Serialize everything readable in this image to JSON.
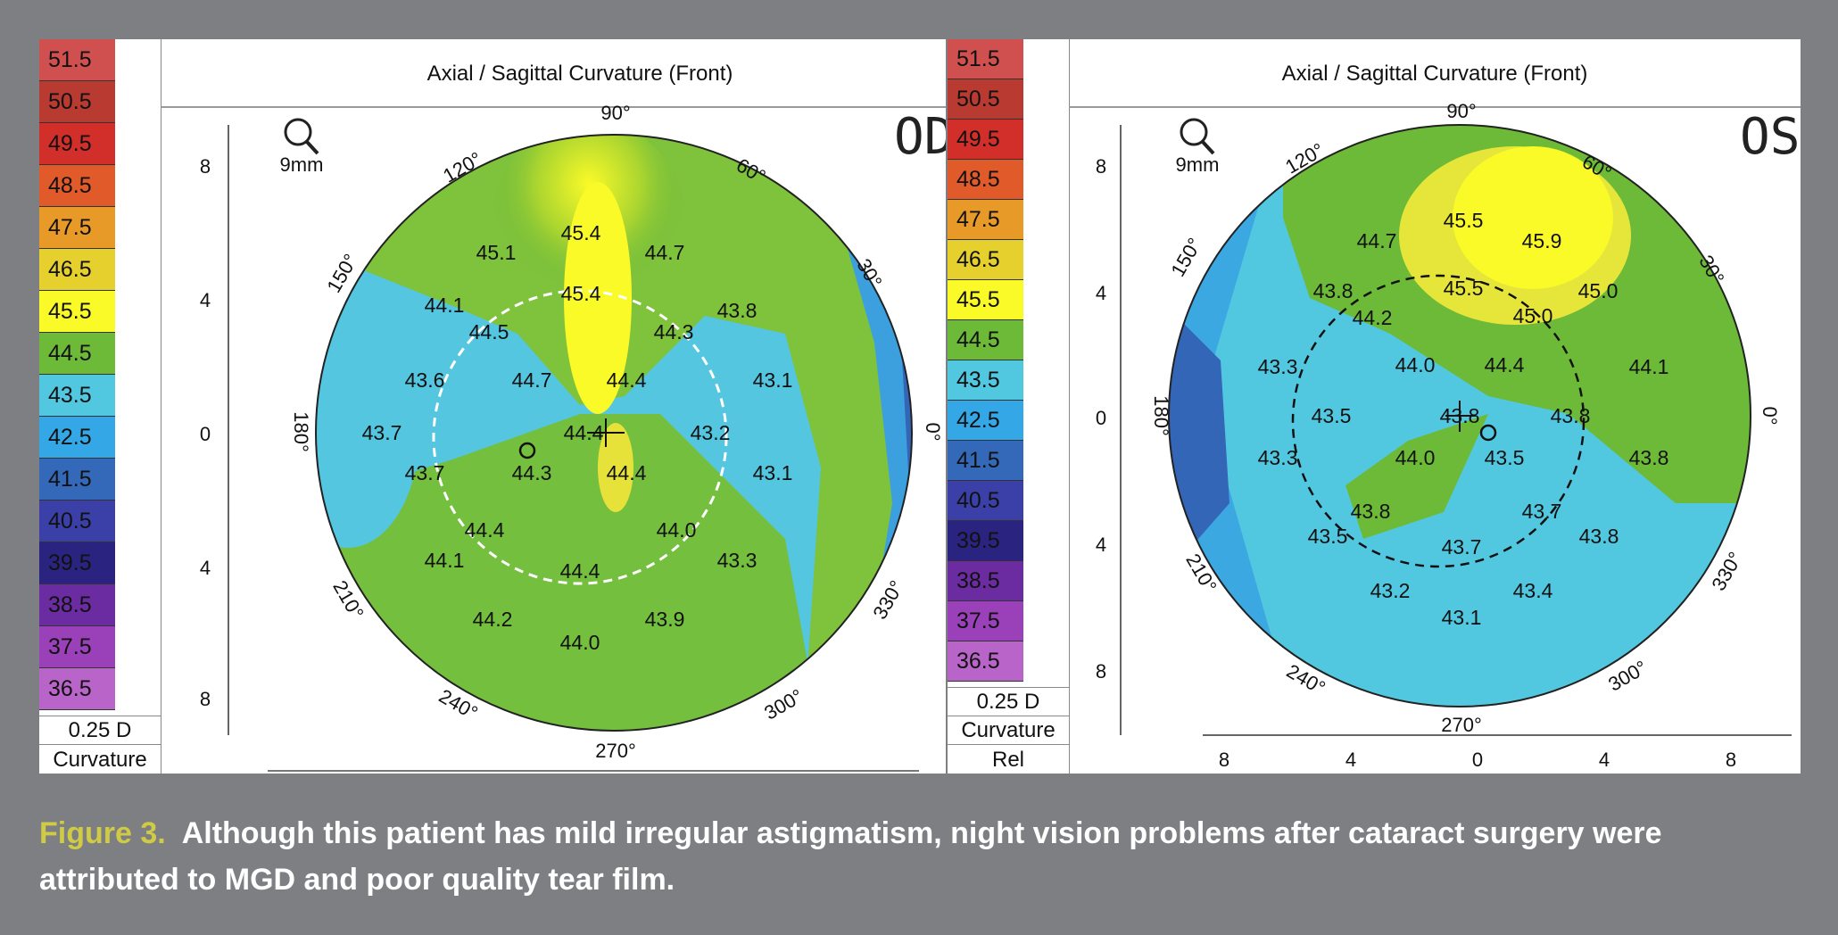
{
  "scale": {
    "levels": [
      "51.5",
      "50.5",
      "49.5",
      "48.5",
      "47.5",
      "46.5",
      "45.5",
      "44.5",
      "43.5",
      "42.5",
      "41.5",
      "40.5",
      "39.5",
      "38.5",
      "37.5",
      "36.5"
    ],
    "colors": [
      "#d05050",
      "#b83a30",
      "#d22f2a",
      "#e05a2a",
      "#e89a28",
      "#e6d02e",
      "#fafa28",
      "#6cba38",
      "#52c8e0",
      "#34a8e6",
      "#3468b8",
      "#3a40a8",
      "#2a2480",
      "#6a2ca0",
      "#9a40b8",
      "#b864c8"
    ],
    "step": "0.25 D",
    "mode": "Curvature"
  },
  "od": {
    "title": "Axial / Sagittal Curvature (Front)",
    "eye": "OD",
    "mm": "9mm",
    "deg_labels": [
      "90°",
      "60°",
      "30°",
      "0°",
      "330°",
      "300°",
      "270°",
      "240°",
      "210°",
      "180°",
      "150°",
      "120°"
    ],
    "y_ticks": [
      "8",
      "4",
      "0",
      "4",
      "8"
    ],
    "values": [
      "45.4",
      "45.1",
      "44.7",
      "45.4",
      "44.1",
      "44.5",
      "44.3",
      "43.8",
      "43.6",
      "44.7",
      "44.4",
      "43.1",
      "43.7",
      "44.4",
      "43.2",
      "43.7",
      "44.3",
      "44.4",
      "43.1",
      "44.4",
      "44.0",
      "44.1",
      "44.4",
      "43.3",
      "44.2",
      "43.9",
      "44.0"
    ]
  },
  "os": {
    "title": "Axial / Sagittal Curvature (Front)",
    "eye": "OS",
    "mm": "9mm",
    "scale_mode2": "Rel",
    "deg_labels": [
      "90°",
      "60°",
      "30°",
      "0°",
      "330°",
      "300°",
      "270°",
      "240°",
      "210°",
      "180°",
      "150°",
      "120°"
    ],
    "y_ticks": [
      "8",
      "4",
      "0",
      "4",
      "8"
    ],
    "x_ticks": [
      "8",
      "4",
      "0",
      "4",
      "8"
    ],
    "values": [
      "45.5",
      "45.9",
      "44.7",
      "45.5",
      "43.8",
      "45.0",
      "44.2",
      "45.0",
      "43.3",
      "44.0",
      "44.4",
      "44.1",
      "43.5",
      "43.8",
      "43.8",
      "43.3",
      "44.0",
      "43.5",
      "43.8",
      "43.8",
      "43.7",
      "43.5",
      "43.7",
      "43.8",
      "43.2",
      "43.4",
      "43.1"
    ]
  },
  "caption": {
    "label": "Figure 3.",
    "text": "Although this patient has mild irregular astigmatism, night vision problems after cataract surgery were attributed to MGD and poor quality tear film."
  }
}
